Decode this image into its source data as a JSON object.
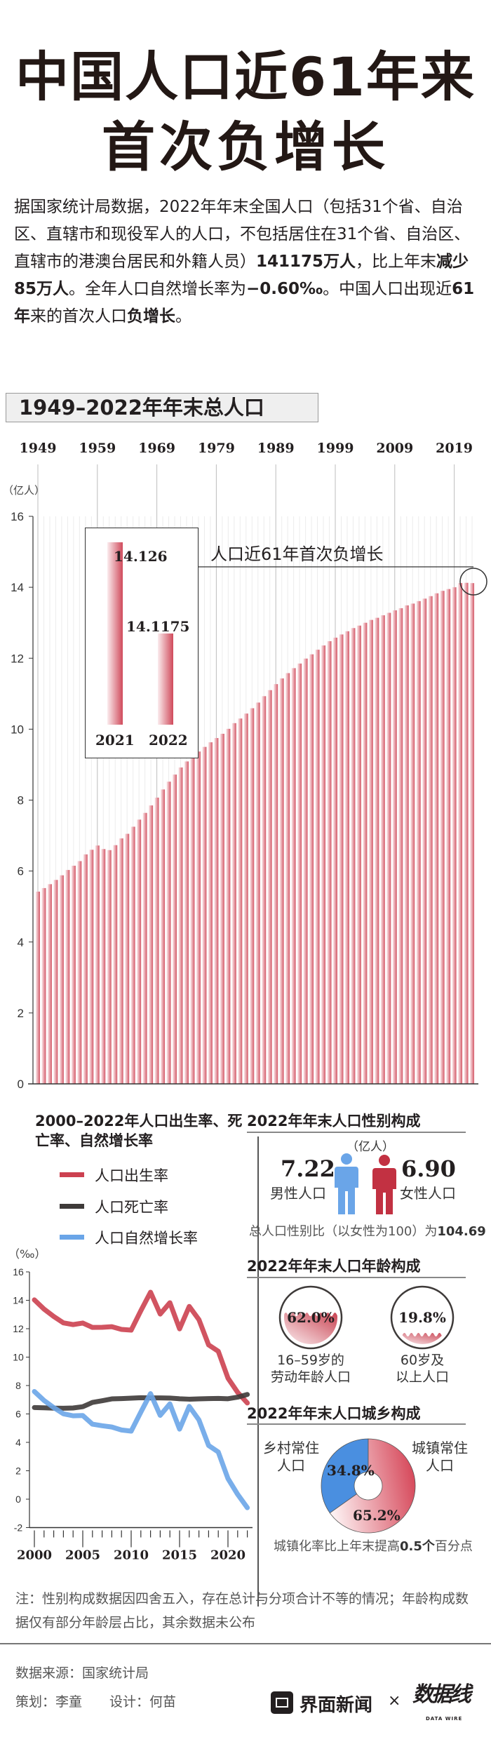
{
  "title": {
    "line1": "中国人口近61年来",
    "line2": "首次负增长"
  },
  "intro": {
    "text1": "据国家统计局数据，2022年年末全国人口（包括31个省、自治区、直辖市和现役军人的人口，不包括居住在31个省、自治区、直辖市的港澳台居民和外籍人员）",
    "bold1": "141175万人",
    "text2": "，比上年末",
    "bold2": "减少85万人",
    "text3": "。全年人口自然增长率为",
    "bold3": "−0.60‰",
    "text4": "。中国人口出现近",
    "bold4": "61年",
    "text5": "来的首次人口",
    "bold5": "负增长",
    "text6": "。"
  },
  "chart_data": [
    {
      "type": "bar",
      "title": "1949–2022年年末总人口",
      "ylabel": "（亿人）",
      "ylim": [
        0,
        16
      ],
      "yticks": [
        "0",
        "2",
        "4",
        "6",
        "8",
        "10",
        "12",
        "14",
        "16"
      ],
      "xtick_labels": [
        "1949",
        "1959",
        "1969",
        "1979",
        "1989",
        "1999",
        "2009",
        "2019"
      ],
      "grid": true,
      "categories": [
        1949,
        1950,
        1951,
        1952,
        1953,
        1954,
        1955,
        1956,
        1957,
        1958,
        1959,
        1960,
        1961,
        1962,
        1963,
        1964,
        1965,
        1966,
        1967,
        1968,
        1969,
        1970,
        1971,
        1972,
        1973,
        1974,
        1975,
        1976,
        1977,
        1978,
        1979,
        1980,
        1981,
        1982,
        1983,
        1984,
        1985,
        1986,
        1987,
        1988,
        1989,
        1990,
        1991,
        1992,
        1993,
        1994,
        1995,
        1996,
        1997,
        1998,
        1999,
        2000,
        2001,
        2002,
        2003,
        2004,
        2005,
        2006,
        2007,
        2008,
        2009,
        2010,
        2011,
        2012,
        2013,
        2014,
        2015,
        2016,
        2017,
        2018,
        2019,
        2020,
        2021,
        2022
      ],
      "values": [
        5.42,
        5.52,
        5.63,
        5.75,
        5.88,
        6.03,
        6.15,
        6.28,
        6.47,
        6.6,
        6.72,
        6.62,
        6.59,
        6.73,
        6.92,
        7.05,
        7.25,
        7.45,
        7.64,
        7.85,
        8.07,
        8.3,
        8.52,
        8.72,
        8.92,
        9.09,
        9.24,
        9.37,
        9.5,
        9.63,
        9.75,
        9.87,
        10.01,
        10.17,
        10.3,
        10.44,
        10.59,
        10.75,
        10.93,
        11.1,
        11.27,
        11.43,
        11.58,
        11.72,
        11.85,
        11.99,
        12.11,
        12.24,
        12.36,
        12.48,
        12.58,
        12.67,
        12.76,
        12.85,
        12.92,
        13.0,
        13.08,
        13.14,
        13.21,
        13.28,
        13.35,
        13.41,
        13.49,
        13.54,
        13.61,
        13.68,
        13.75,
        13.83,
        13.9,
        13.95,
        14.0,
        14.12,
        14.126,
        14.1175
      ],
      "inset": {
        "categories": [
          "2021",
          "2022"
        ],
        "values": [
          14.126,
          14.1175
        ],
        "value_labels": [
          "14.126",
          "14.1175"
        ]
      },
      "annotation": "人口近61年首次负增长",
      "bar_color": "#d45a69"
    },
    {
      "type": "line",
      "title": "2000–2022年人口出生率、死亡率、自然增长率",
      "ylabel": "（‰）",
      "ylim": [
        -2,
        16
      ],
      "yticks": [
        "-2",
        "0",
        "2",
        "4",
        "6",
        "8",
        "10",
        "12",
        "14",
        "16"
      ],
      "xtick_labels": [
        "2000",
        "2005",
        "2010",
        "2015",
        "2020"
      ],
      "x": [
        2000,
        2001,
        2002,
        2003,
        2004,
        2005,
        2006,
        2007,
        2008,
        2009,
        2010,
        2011,
        2012,
        2013,
        2014,
        2015,
        2016,
        2017,
        2018,
        2019,
        2020,
        2021,
        2022
      ],
      "series": [
        {
          "name": "人口出生率",
          "color": "#cc4150",
          "values": [
            14.03,
            13.38,
            12.86,
            12.41,
            12.29,
            12.4,
            12.09,
            12.1,
            12.14,
            11.95,
            11.9,
            13.27,
            14.57,
            13.03,
            13.83,
            11.99,
            13.57,
            12.64,
            10.86,
            10.41,
            8.52,
            7.52,
            6.77
          ]
        },
        {
          "name": "人口死亡率",
          "color": "#3e3a39",
          "values": [
            6.45,
            6.43,
            6.41,
            6.4,
            6.42,
            6.51,
            6.81,
            6.93,
            7.06,
            7.08,
            7.11,
            7.14,
            7.13,
            7.13,
            7.12,
            7.07,
            7.04,
            7.06,
            7.08,
            7.09,
            7.07,
            7.18,
            7.37
          ]
        },
        {
          "name": "人口自然增长率",
          "color": "#6aa5e8",
          "values": [
            7.58,
            6.95,
            6.45,
            6.01,
            5.87,
            5.89,
            5.28,
            5.17,
            5.08,
            4.87,
            4.79,
            6.13,
            7.43,
            5.9,
            6.71,
            4.93,
            6.53,
            5.58,
            3.78,
            3.32,
            1.45,
            0.34,
            -0.6
          ]
        }
      ],
      "legend": "top-left"
    },
    {
      "type": "pie",
      "title": "2022年年末人口城乡构成",
      "categories": [
        "乡村常住人口",
        "城镇常住人口"
      ],
      "values": [
        34.8,
        65.2
      ],
      "value_labels": [
        "34.8%",
        "65.2%"
      ],
      "colors": [
        "#4a8fe0",
        "#d6485a"
      ],
      "note": "城镇化率比上年末提高",
      "note_bold": "0.5个",
      "note_end": "百分点"
    }
  ],
  "gender": {
    "title": "2022年年末人口性别构成",
    "unit": "（亿人）",
    "male_value": "7.22",
    "male_label": "男性人口",
    "female_value": "6.90",
    "female_label": "女性人口",
    "ratio_text": "总人口性别比（以女性为100）为",
    "ratio_value": "104.69",
    "male_color": "#6aa5e8",
    "female_color": "#c23142"
  },
  "age": {
    "title": "2022年年末人口年龄构成",
    "items": [
      {
        "value": "62.0%",
        "fraction": 0.62,
        "label1": "16–59岁的",
        "label2": "劳动年龄人口"
      },
      {
        "value": "19.8%",
        "fraction": 0.198,
        "label1": "60岁及",
        "label2": "以上人口"
      }
    ]
  },
  "urban": {
    "rural_label1": "乡村常住",
    "rural_label2": "人口",
    "urban_label1": "城镇常住",
    "urban_label2": "人口"
  },
  "note": "注：性别构成数据因四舍五入，存在总计与分项合计不等的情况；年龄构成数据仅有部分年龄层占比，其余数据未公布",
  "footer": {
    "source": "数据来源：国家统计局",
    "planner": "策划：李童",
    "designer": "设计：何苗",
    "brand1": "界面新闻",
    "times": "×",
    "brand2": "数据线",
    "brand2_sub": "DATA WIRE"
  }
}
